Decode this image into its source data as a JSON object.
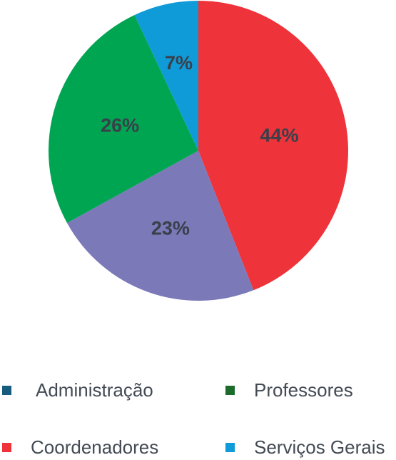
{
  "chart_data": {
    "type": "pie",
    "slices": [
      {
        "label": "Coordenadores",
        "value": 44,
        "display": "44%",
        "color": "#ee333b"
      },
      {
        "label": "",
        "value": 23,
        "display": "23%",
        "color": "#7b79b8"
      },
      {
        "label": "Professores",
        "value": 26,
        "display": "26%",
        "color": "#00a552"
      },
      {
        "label": "Serviços Gerais",
        "value": 7,
        "display": "7%",
        "color": "#0f9bd8"
      }
    ],
    "legend": [
      {
        "label": "Administração",
        "color": "#175c7c"
      },
      {
        "label": "Professores",
        "color": "#1b6b2b"
      },
      {
        "label": "Coordenadores",
        "color": "#ee333b"
      },
      {
        "label": "Serviços Gerais",
        "color": "#0f9bd8"
      }
    ],
    "legend_placement": "bottom"
  }
}
